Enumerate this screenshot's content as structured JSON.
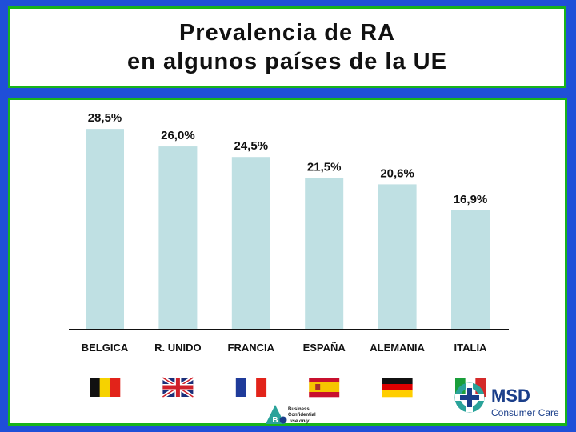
{
  "title": {
    "line1": "Prevalencia de RA",
    "line2": "en algunos países de la UE"
  },
  "chart_data": {
    "type": "bar",
    "categories": [
      "BELGICA",
      "R. UNIDO",
      "FRANCIA",
      "ESPAÑA",
      "ALEMANIA",
      "ITALIA"
    ],
    "values": [
      28.5,
      26.0,
      24.5,
      21.5,
      20.6,
      16.9
    ],
    "value_labels": [
      "28,5%",
      "26,0%",
      "24,5%",
      "21,5%",
      "20,6%",
      "16,9%"
    ],
    "ylim": [
      0,
      30
    ],
    "grid": false,
    "legend": "none",
    "bar_color": "#bfe0e3"
  },
  "flags": [
    "belgium-flag-icon",
    "uk-flag-icon",
    "france-flag-icon",
    "spain-flag-icon",
    "germany-flag-icon",
    "italy-flag-icon"
  ],
  "branding": {
    "name": "MSD",
    "sub": "Consumer Care",
    "badge_letter": "B",
    "badge_line1": "Business",
    "badge_line2": "Confidential",
    "badge_line3": "use only"
  },
  "colors": {
    "background": "#1f4fd8",
    "frame": "#18b31a",
    "msd_teal": "#2aa39a",
    "msd_navy": "#1a3e8a"
  }
}
